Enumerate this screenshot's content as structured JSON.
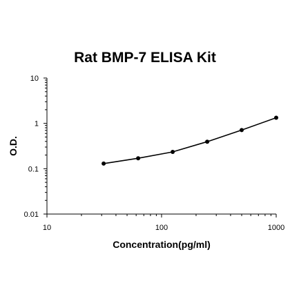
{
  "chart_data": {
    "type": "line",
    "title": "Rat BMP-7 ELISA Kit",
    "xlabel": "Concentration(pg/ml)",
    "ylabel": "O.D.",
    "x_scale": "log",
    "y_scale": "log",
    "xlim": [
      10,
      1000
    ],
    "ylim": [
      0.01,
      10
    ],
    "x_ticks": [
      "10",
      "100",
      "1000"
    ],
    "y_ticks": [
      "0.01",
      "0.1",
      "1",
      "10"
    ],
    "grid": false,
    "legend": "none",
    "series": [
      {
        "x": [
          31.25,
          62.5,
          125,
          250,
          500,
          1000
        ],
        "y": [
          0.13,
          0.17,
          0.235,
          0.395,
          0.71,
          1.33
        ]
      }
    ],
    "colors": {
      "line": "#000000",
      "marker": "#000000"
    }
  }
}
